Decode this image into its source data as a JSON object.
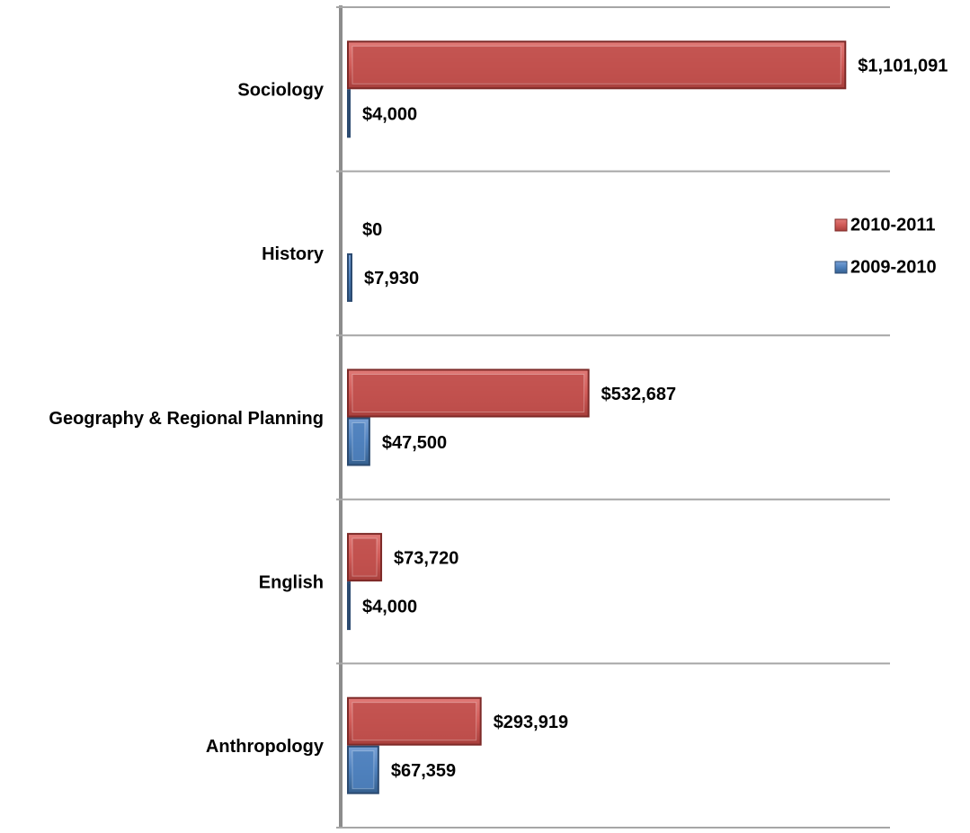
{
  "chart_data": {
    "type": "bar",
    "orientation": "horizontal",
    "categories": [
      "Sociology",
      "History",
      "Geography & Regional Planning",
      "English",
      "Anthropology"
    ],
    "series": [
      {
        "name": "2010-2011",
        "color": "#c0504d",
        "values": [
          1101091,
          0,
          532687,
          73720,
          293919
        ],
        "value_labels": [
          "$1,101,091",
          "$0",
          "$532,687",
          "$73,720",
          "$293,919"
        ]
      },
      {
        "name": "2009-2010",
        "color": "#4f81bd",
        "values": [
          4000,
          7930,
          47500,
          4000,
          67359
        ],
        "value_labels": [
          "$4,000",
          "$7,930",
          "$47,500",
          "$4,000",
          "$67,359"
        ]
      }
    ],
    "xlim": [
      0,
      1200000
    ],
    "grid": true,
    "legend": "right"
  }
}
